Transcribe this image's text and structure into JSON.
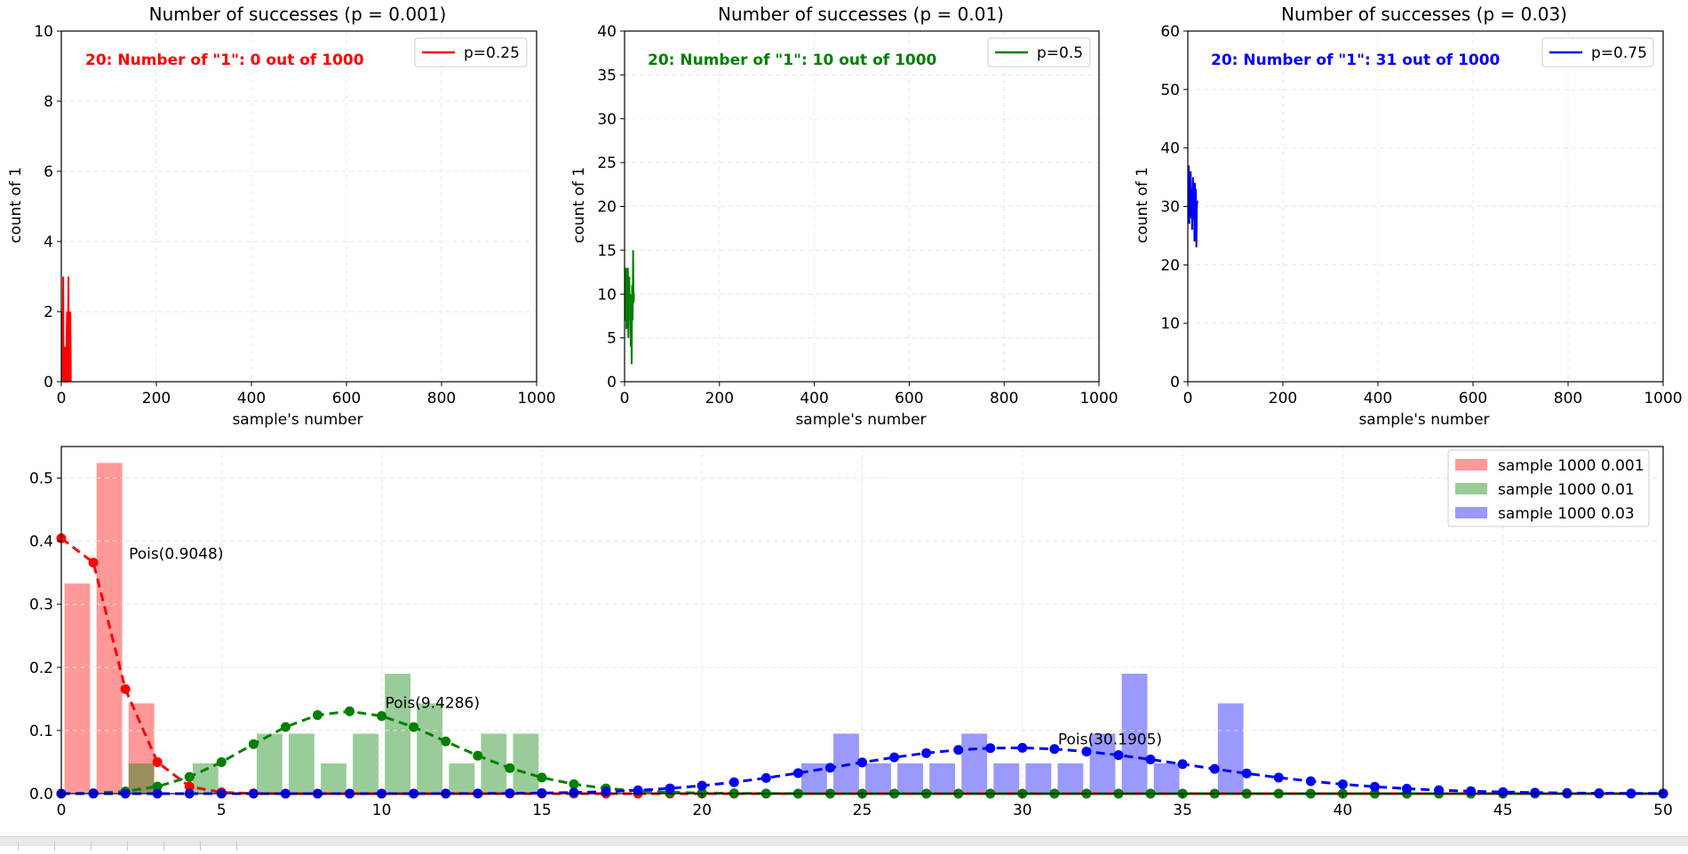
{
  "colors": {
    "red": "#ff0000",
    "green": "#008000",
    "blue": "#0000ff"
  },
  "top_panels": [
    {
      "title": "Number of successes (p = 0.001)",
      "xlabel": "sample's number",
      "ylabel": "count of 1",
      "annotation": "20: Number of \"1\": 0 out of 1000",
      "legend": "p=0.25",
      "color": "#ff0000",
      "xlim": [
        0,
        1000
      ],
      "ylim": [
        0,
        10
      ],
      "xticks": [
        0,
        200,
        400,
        600,
        800,
        1000
      ],
      "yticks": [
        0,
        2,
        4,
        6,
        8,
        10
      ],
      "values": [
        0,
        2,
        1,
        3,
        0,
        1,
        0,
        1,
        0,
        0,
        1,
        2,
        0,
        1,
        3,
        0,
        1,
        0,
        2,
        0
      ]
    },
    {
      "title": "Number of successes (p = 0.01)",
      "xlabel": "sample's number",
      "ylabel": "count of 1",
      "annotation": "20: Number of \"1\": 10 out of 1000",
      "legend": "p=0.5",
      "color": "#008000",
      "xlim": [
        0,
        1000
      ],
      "ylim": [
        0,
        40
      ],
      "xticks": [
        0,
        200,
        400,
        600,
        800,
        1000
      ],
      "yticks": [
        0,
        5,
        10,
        15,
        20,
        25,
        30,
        35,
        40
      ],
      "values": [
        7,
        10,
        13,
        6,
        11,
        8,
        13,
        5,
        9,
        12,
        7,
        10,
        4,
        8,
        2,
        11,
        7,
        15,
        9,
        10
      ]
    },
    {
      "title": "Number of successes (p = 0.03)",
      "xlabel": "sample's number",
      "ylabel": "count of 1",
      "annotation": "20: Number of \"1\": 31 out of 1000",
      "legend": "p=0.75",
      "color": "#0000ff",
      "xlim": [
        0,
        1000
      ],
      "ylim": [
        0,
        60
      ],
      "xticks": [
        0,
        200,
        400,
        600,
        800,
        1000
      ],
      "yticks": [
        0,
        10,
        20,
        30,
        40,
        50,
        60
      ],
      "values": [
        30,
        37,
        27,
        34,
        28,
        36,
        29,
        33,
        26,
        31,
        35,
        28,
        32,
        24,
        34,
        27,
        33,
        23,
        30,
        31
      ]
    }
  ],
  "chart_data": {
    "type": "bar",
    "xlim": [
      0,
      50
    ],
    "ylim": [
      0,
      0.55
    ],
    "xticks": [
      0,
      5,
      10,
      15,
      20,
      25,
      30,
      35,
      40,
      45,
      50
    ],
    "yticks": [
      0.0,
      0.1,
      0.2,
      0.3,
      0.4,
      0.5
    ],
    "legend_position": "top-right",
    "series": [
      {
        "name": "sample 1000 0.001",
        "color": "#ff0000",
        "bars": [
          [
            0,
            0.333
          ],
          [
            1,
            0.524
          ],
          [
            2,
            0.143
          ],
          [
            3,
            0.0
          ]
        ],
        "poisson_label": "Pois(0.9048)",
        "lambda": 0.9048
      },
      {
        "name": "sample 1000 0.01",
        "color": "#008000",
        "bars": [
          [
            2,
            0.048
          ],
          [
            4,
            0.048
          ],
          [
            6,
            0.095
          ],
          [
            7,
            0.095
          ],
          [
            8,
            0.048
          ],
          [
            9,
            0.095
          ],
          [
            10,
            0.19
          ],
          [
            11,
            0.143
          ],
          [
            12,
            0.048
          ],
          [
            13,
            0.095
          ],
          [
            14,
            0.095
          ]
        ],
        "poisson_label": "Pois(9.4286)",
        "lambda": 9.4286
      },
      {
        "name": "sample 1000 0.03",
        "color": "#0000ff",
        "bars": [
          [
            23,
            0.048
          ],
          [
            24,
            0.095
          ],
          [
            25,
            0.048
          ],
          [
            26,
            0.048
          ],
          [
            27,
            0.048
          ],
          [
            28,
            0.095
          ],
          [
            29,
            0.048
          ],
          [
            30,
            0.048
          ],
          [
            31,
            0.048
          ],
          [
            32,
            0.095
          ],
          [
            33,
            0.19
          ],
          [
            34,
            0.048
          ],
          [
            36,
            0.143
          ]
        ],
        "poisson_label": "Pois(30.1905)",
        "lambda": 30.1905
      }
    ]
  }
}
